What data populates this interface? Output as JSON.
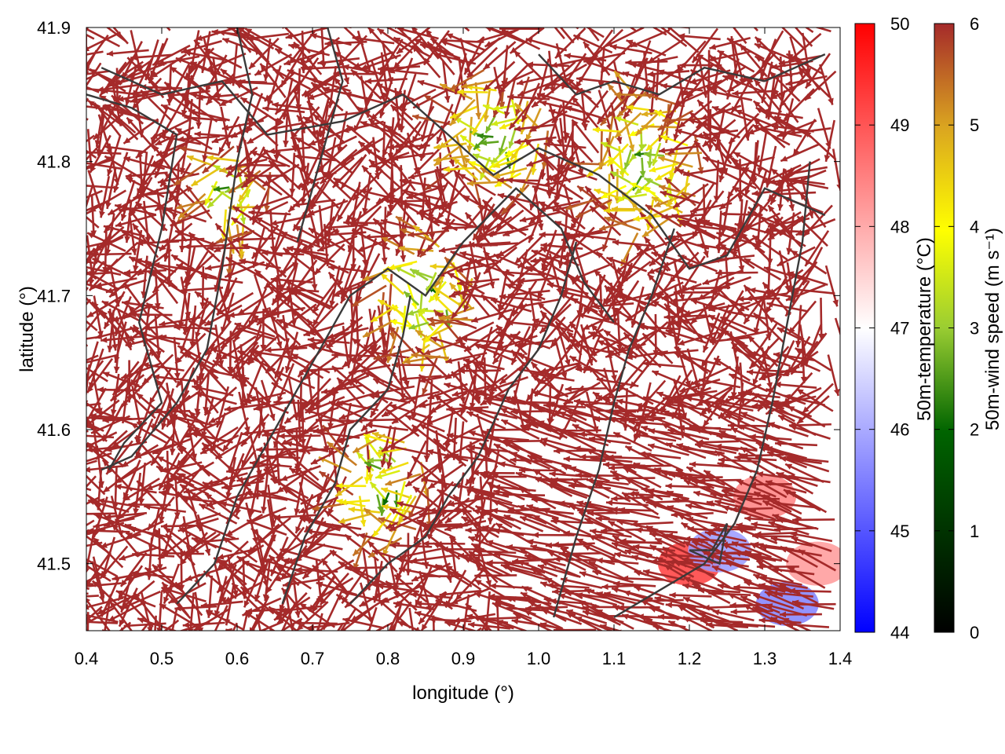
{
  "chart_data": {
    "type": "vector_field",
    "xlabel": "longitude (°)",
    "ylabel": "latitude (°)",
    "xlim": [
      0.4,
      1.4
    ],
    "ylim": [
      41.45,
      41.9
    ],
    "x_ticks": [
      0.4,
      0.5,
      0.6,
      0.7,
      0.8,
      0.9,
      1.0,
      1.1,
      1.2,
      1.3,
      1.4
    ],
    "x_tick_labels": [
      "0.4",
      "0.5",
      "0.6",
      "0.7",
      "0.8",
      "0.9",
      "1.0",
      "1.1",
      "1.2",
      "1.3",
      "1.4"
    ],
    "y_ticks": [
      41.5,
      41.6,
      41.7,
      41.8,
      41.9
    ],
    "y_tick_labels": [
      "41.5",
      "41.6",
      "41.7",
      "41.8",
      "41.9"
    ],
    "temperature_colorbar": {
      "label": "50m-temperature (°C)",
      "min": 44,
      "max": 50,
      "ticks": [
        44,
        45,
        46,
        47,
        48,
        49,
        50
      ],
      "tick_labels": [
        "44",
        "45",
        "46",
        "47",
        "48",
        "49",
        "50"
      ],
      "colors": [
        "#0000ff",
        "#ffffff",
        "#ff0000"
      ]
    },
    "wind_colorbar": {
      "label": "50m-wind speed (m s⁻¹)",
      "min": 0,
      "max": 6,
      "ticks": [
        0,
        1,
        2,
        3,
        4,
        5,
        6
      ],
      "tick_labels": [
        "0",
        "1",
        "2",
        "3",
        "4",
        "5",
        "6"
      ],
      "colors": [
        "#000000",
        "#006400",
        "#9acd32",
        "#ffff00",
        "#daa520",
        "#a52a2a"
      ]
    },
    "calm_zones": [
      {
        "lon": 0.86,
        "lat": 41.7,
        "radius": 0.07
      },
      {
        "lon": 0.8,
        "lat": 41.56,
        "radius": 0.06
      },
      {
        "lon": 0.95,
        "lat": 41.82,
        "radius": 0.07
      },
      {
        "lon": 1.15,
        "lat": 41.8,
        "radius": 0.08
      },
      {
        "lon": 0.6,
        "lat": 41.78,
        "radius": 0.05
      }
    ],
    "warm_spots": [
      {
        "lon": 1.2,
        "lat": 41.5,
        "temp": 49.3
      },
      {
        "lon": 1.3,
        "lat": 41.55,
        "temp": 48.5
      },
      {
        "lon": 1.37,
        "lat": 41.5,
        "temp": 48.2
      }
    ],
    "cool_spots": [
      {
        "lon": 1.24,
        "lat": 41.51,
        "temp": 45.8
      },
      {
        "lon": 1.33,
        "lat": 41.47,
        "temp": 45.5
      }
    ],
    "contours": [
      [
        [
          0.42,
          41.87
        ],
        [
          0.5,
          41.85
        ],
        [
          0.58,
          41.86
        ],
        [
          0.64,
          41.82
        ],
        [
          0.74,
          41.83
        ],
        [
          0.82,
          41.85
        ],
        [
          0.88,
          41.82
        ],
        [
          0.94,
          41.79
        ],
        [
          1.0,
          41.81
        ],
        [
          1.08,
          41.79
        ],
        [
          1.15,
          41.76
        ],
        [
          1.2,
          41.72
        ],
        [
          1.25,
          41.73
        ],
        [
          1.3,
          41.78
        ],
        [
          1.38,
          41.76
        ]
      ],
      [
        [
          0.4,
          41.85
        ],
        [
          0.46,
          41.84
        ],
        [
          0.52,
          41.82
        ],
        [
          0.5,
          41.75
        ],
        [
          0.47,
          41.68
        ],
        [
          0.5,
          41.62
        ],
        [
          0.45,
          41.59
        ],
        [
          0.43,
          41.57
        ]
      ],
      [
        [
          0.6,
          41.9
        ],
        [
          0.62,
          41.85
        ],
        [
          0.6,
          41.8
        ],
        [
          0.58,
          41.72
        ],
        [
          0.56,
          41.66
        ],
        [
          0.52,
          41.62
        ],
        [
          0.46,
          41.58
        ],
        [
          0.42,
          41.57
        ]
      ],
      [
        [
          0.52,
          41.47
        ],
        [
          0.57,
          41.5
        ],
        [
          0.6,
          41.55
        ],
        [
          0.65,
          41.6
        ],
        [
          0.7,
          41.65
        ],
        [
          0.75,
          41.7
        ],
        [
          0.8,
          41.72
        ],
        [
          0.85,
          41.7
        ],
        [
          0.9,
          41.74
        ],
        [
          0.97,
          41.78
        ],
        [
          1.03,
          41.75
        ],
        [
          1.06,
          41.71
        ],
        [
          1.1,
          41.68
        ]
      ],
      [
        [
          0.66,
          41.47
        ],
        [
          0.69,
          41.52
        ],
        [
          0.73,
          41.56
        ],
        [
          0.75,
          41.6
        ],
        [
          0.8,
          41.63
        ],
        [
          0.82,
          41.67
        ],
        [
          0.83,
          41.7
        ]
      ],
      [
        [
          0.75,
          41.47
        ],
        [
          0.8,
          41.5
        ],
        [
          0.85,
          41.52
        ],
        [
          0.88,
          41.55
        ],
        [
          0.92,
          41.58
        ],
        [
          0.96,
          41.63
        ],
        [
          1.0,
          41.66
        ],
        [
          1.03,
          41.7
        ],
        [
          1.05,
          41.74
        ]
      ],
      [
        [
          1.02,
          41.46
        ],
        [
          1.05,
          41.52
        ],
        [
          1.08,
          41.57
        ],
        [
          1.1,
          41.62
        ],
        [
          1.12,
          41.66
        ],
        [
          1.15,
          41.7
        ],
        [
          1.18,
          41.75
        ]
      ],
      [
        [
          1.1,
          41.46
        ],
        [
          1.16,
          41.48
        ],
        [
          1.22,
          41.5
        ],
        [
          1.26,
          41.53
        ],
        [
          1.29,
          41.57
        ],
        [
          1.31,
          41.62
        ],
        [
          1.33,
          41.68
        ],
        [
          1.35,
          41.74
        ],
        [
          1.36,
          41.8
        ]
      ],
      [
        [
          1.2,
          41.51
        ],
        [
          1.24,
          41.5
        ],
        [
          1.25,
          41.53
        ],
        [
          1.23,
          41.51
        ],
        [
          1.2,
          41.51
        ]
      ],
      [
        [
          1.0,
          41.88
        ],
        [
          1.05,
          41.85
        ],
        [
          1.1,
          41.86
        ],
        [
          1.16,
          41.85
        ],
        [
          1.22,
          41.87
        ],
        [
          1.3,
          41.86
        ],
        [
          1.38,
          41.88
        ]
      ],
      [
        [
          0.72,
          41.9
        ],
        [
          0.74,
          41.86
        ],
        [
          0.72,
          41.82
        ],
        [
          0.7,
          41.78
        ],
        [
          0.68,
          41.74
        ]
      ]
    ],
    "vector_field": {
      "grid_step_deg": 0.013,
      "max_speed": 6,
      "wind_colormap": "black-green-yellow-brown"
    }
  }
}
